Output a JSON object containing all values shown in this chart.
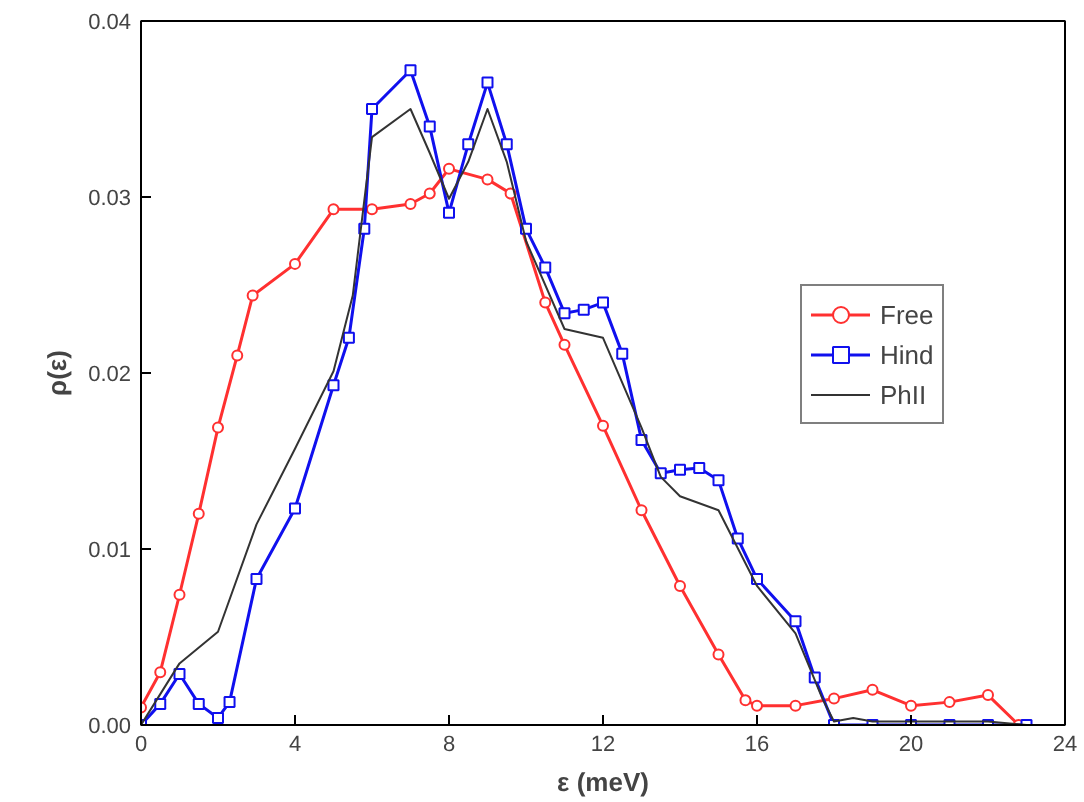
{
  "chart_data": {
    "type": "line",
    "xlabel": "ε (meV)",
    "ylabel": "ρ(ε)",
    "xlim": [
      0,
      24
    ],
    "ylim": [
      0,
      0.04
    ],
    "xticks": [
      0,
      4,
      8,
      12,
      16,
      20,
      24
    ],
    "yticks": [
      {
        "value": 0,
        "label": "0.00"
      },
      {
        "value": 0.01,
        "label": "0.01"
      },
      {
        "value": 0.02,
        "label": "0.02"
      },
      {
        "value": 0.03,
        "label": "0.03"
      },
      {
        "value": 0.04,
        "label": "0.04"
      }
    ],
    "grid": false,
    "legend": "right",
    "series": [
      {
        "name": "Free",
        "color": "#ff3030",
        "marker": "circle",
        "x": [
          0,
          0.5,
          1,
          1.5,
          2,
          2.5,
          2.9,
          4,
          5,
          6,
          7,
          7.5,
          8,
          9,
          9.6,
          10.5,
          11,
          12,
          13,
          14,
          15,
          15.7,
          16,
          17,
          18,
          19,
          20,
          21,
          22,
          22.8
        ],
        "values": [
          0.001,
          0.003,
          0.0074,
          0.012,
          0.0169,
          0.021,
          0.0244,
          0.0262,
          0.0293,
          0.0293,
          0.0296,
          0.0302,
          0.0316,
          0.031,
          0.0302,
          0.024,
          0.0216,
          0.017,
          0.0122,
          0.0079,
          0.004,
          0.0014,
          0.0011,
          0.0011,
          0.0015,
          0.002,
          0.0011,
          0.0013,
          0.0017,
          0
        ]
      },
      {
        "name": "Hind",
        "color": "#1010ee",
        "marker": "square",
        "x": [
          0,
          0.5,
          1,
          1.5,
          2,
          2.3,
          3,
          4,
          5,
          5.4,
          5.8,
          6,
          7,
          7.5,
          8,
          8.5,
          9,
          9.5,
          10,
          10.5,
          11,
          11.5,
          12,
          12.5,
          13,
          13.5,
          14,
          14.5,
          15,
          15.5,
          16,
          17,
          17.5,
          18,
          19,
          20,
          21,
          22,
          23
        ],
        "values": [
          0,
          0.0012,
          0.0029,
          0.0012,
          0.0004,
          0.0013,
          0.0083,
          0.0123,
          0.0193,
          0.022,
          0.0282,
          0.035,
          0.0372,
          0.034,
          0.0291,
          0.033,
          0.0365,
          0.033,
          0.0282,
          0.026,
          0.0234,
          0.0236,
          0.024,
          0.0211,
          0.0162,
          0.0143,
          0.0145,
          0.0146,
          0.0139,
          0.0106,
          0.0083,
          0.0059,
          0.0027,
          0,
          0,
          0,
          0,
          0,
          0
        ]
      },
      {
        "name": "PhII",
        "color": "#333333",
        "marker": "none",
        "x": [
          0,
          1,
          2,
          3,
          4,
          5,
          5.5,
          6,
          7,
          7.5,
          8,
          8.5,
          9,
          9.5,
          10,
          11,
          12,
          13,
          13.5,
          14,
          15,
          16,
          17,
          17.7,
          18,
          18.5,
          19,
          22,
          23
        ],
        "values": [
          0,
          0.0035,
          0.0053,
          0.0114,
          0.0157,
          0.0201,
          0.0244,
          0.0334,
          0.035,
          0.0325,
          0.0299,
          0.032,
          0.035,
          0.032,
          0.0275,
          0.0225,
          0.022,
          0.0169,
          0.0141,
          0.013,
          0.0122,
          0.0079,
          0.0052,
          0.0015,
          0.0002,
          0.0004,
          0.0002,
          0.0002,
          0
        ]
      }
    ]
  }
}
